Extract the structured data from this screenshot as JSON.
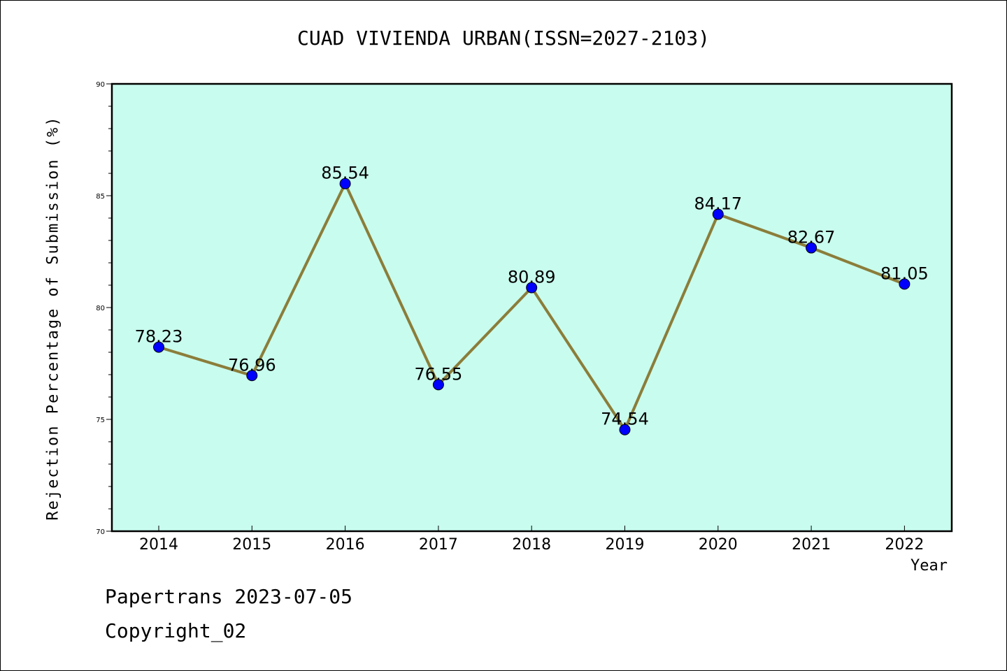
{
  "chart_data": {
    "type": "line",
    "title": "CUAD VIVIENDA URBAN(ISSN=2027-2103)",
    "xlabel": "Year",
    "ylabel": "Rejection Percentage of Submission (%)",
    "categories": [
      "2014",
      "2015",
      "2016",
      "2017",
      "2018",
      "2019",
      "2020",
      "2021",
      "2022"
    ],
    "series": [
      {
        "values": [
          78.23,
          76.96,
          85.54,
          76.55,
          80.89,
          74.54,
          84.17,
          82.67,
          81.05
        ],
        "labels": [
          "78.23",
          "76.96",
          "85.54",
          "76.55",
          "80.89",
          "74.54",
          "84.17",
          "82.67",
          "81.05"
        ]
      }
    ],
    "ylim": [
      70,
      90
    ],
    "yticks": [
      70,
      75,
      80,
      85,
      90
    ],
    "ytick_labels": [
      "70",
      "75",
      "80",
      "85",
      "90"
    ],
    "grid": false,
    "colors": {
      "plot_background": "#c8fcee",
      "line": "#8b7d3a",
      "marker": "#0000ff"
    }
  },
  "footer": {
    "line1": "Papertrans 2023-07-05",
    "line2": "Copyright_02"
  }
}
